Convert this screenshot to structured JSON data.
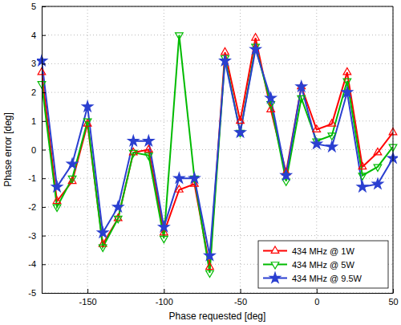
{
  "chart_data": {
    "type": "line",
    "x_label": "Phase requested [deg]",
    "y_label": "Phase error [deg]",
    "x": [
      -180,
      -170,
      -160,
      -150,
      -140,
      -130,
      -120,
      -110,
      -100,
      -90,
      -80,
      -70,
      -60,
      -50,
      -40,
      -30,
      -20,
      -10,
      0,
      10,
      20,
      30,
      40,
      50
    ],
    "series": [
      {
        "name": "434 MHz @ 1W",
        "color": "#ff0000",
        "marker": "triangle-up",
        "values": [
          2.7,
          -1.8,
          -1.1,
          0.9,
          -3.3,
          -2.4,
          -0.1,
          0.0,
          -2.9,
          -1.4,
          -1.2,
          -4.1,
          3.4,
          1.0,
          3.9,
          1.4,
          -0.8,
          2.2,
          0.7,
          0.9,
          2.7,
          -0.6,
          -0.1,
          0.6
        ]
      },
      {
        "name": "434 MHz @ 5W",
        "color": "#00bb00",
        "marker": "triangle-down",
        "values": [
          2.3,
          -2.0,
          -1.0,
          1.0,
          -3.4,
          -2.4,
          -0.1,
          -0.2,
          -3.1,
          4.0,
          -1.0,
          -4.3,
          3.2,
          0.6,
          3.6,
          1.6,
          -1.1,
          1.8,
          0.3,
          0.5,
          2.4,
          -0.9,
          -0.6,
          0.1
        ]
      },
      {
        "name": "434 MHz @ 9.5W",
        "color": "#2a3fd0",
        "marker": "star",
        "values": [
          3.1,
          -1.3,
          -0.5,
          1.5,
          -2.9,
          -2.0,
          0.3,
          0.3,
          -2.7,
          -1.0,
          -1.0,
          -3.7,
          3.1,
          0.6,
          3.5,
          1.8,
          -0.9,
          2.2,
          0.2,
          0.1,
          2.0,
          -1.3,
          -1.2,
          -0.3
        ]
      }
    ],
    "xlim": [
      -180,
      50
    ],
    "xticks": [
      -150,
      -100,
      -50,
      0,
      50
    ],
    "ylim": [
      -5,
      5
    ],
    "yticks": [
      -5,
      -4,
      -3,
      -2,
      -1,
      0,
      1,
      2,
      3,
      4,
      5
    ],
    "grid": true,
    "legend": "lower right"
  }
}
